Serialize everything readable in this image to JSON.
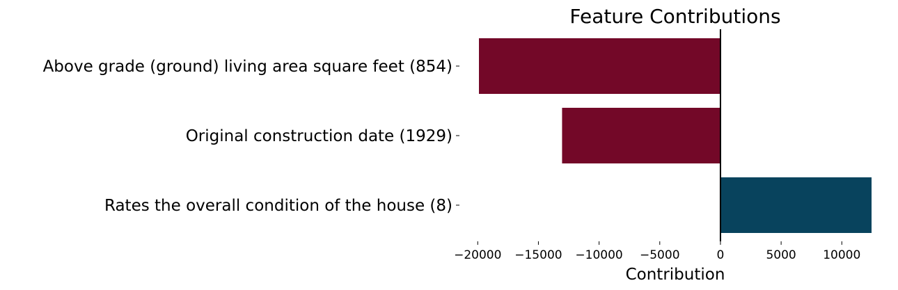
{
  "chart_data": {
    "type": "bar",
    "orientation": "horizontal",
    "title": "Feature Contributions",
    "xlabel": "Contribution",
    "ylabel": "",
    "categories": [
      "Above grade (ground) living area square feet (854)",
      "Original construction date (1929)",
      "Rates the overall condition of the house (8)"
    ],
    "values": [
      -19900,
      -13050,
      12450
    ],
    "colors": [
      "#730828",
      "#730828",
      "#08435d"
    ],
    "negative_color": "#730828",
    "positive_color": "#08435d",
    "xlim": [
      -19900,
      12450
    ],
    "xticks": [
      -20000,
      -15000,
      -10000,
      -5000,
      0,
      5000,
      10000
    ],
    "xtick_labels": [
      "−20000",
      "−15000",
      "−10000",
      "−5000",
      "0",
      "5000",
      "10000"
    ],
    "zero_line": true,
    "grid": false,
    "legend": "none"
  }
}
